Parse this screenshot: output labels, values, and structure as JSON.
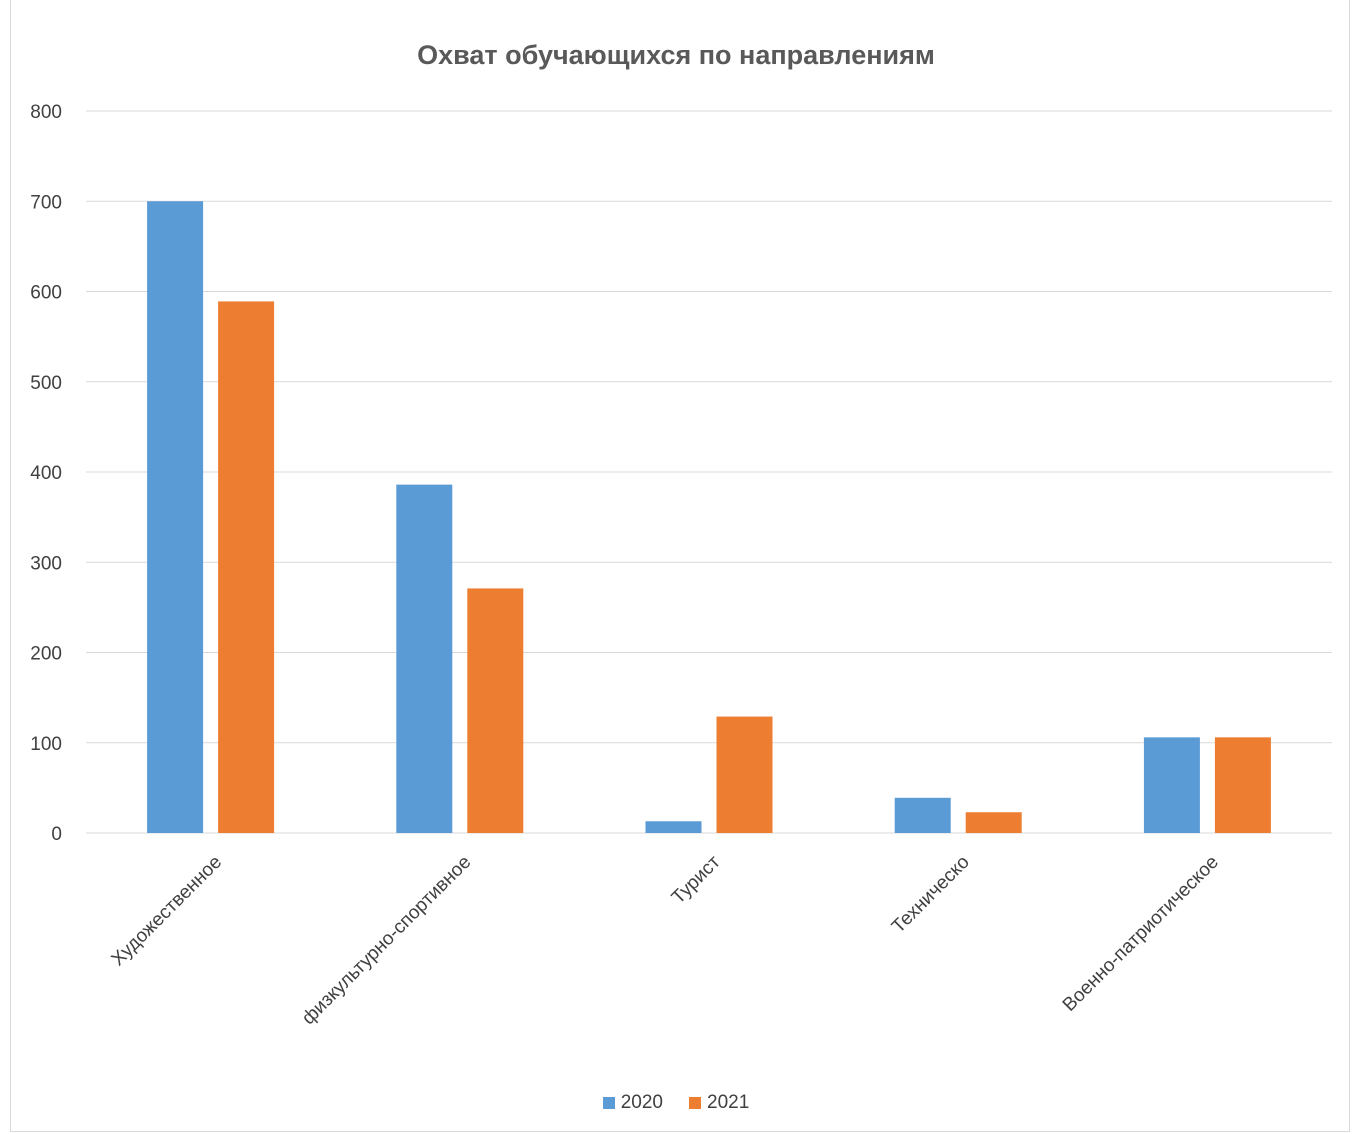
{
  "chart_data": {
    "type": "bar",
    "title": "Охват обучающихся по направлениям",
    "categories": [
      "Художественное",
      "физкультурно-спортивное",
      "Турист",
      "Техническо",
      "Военно-патриотическое"
    ],
    "series": [
      {
        "name": "2020",
        "values": [
          700,
          386,
          13,
          39,
          106
        ],
        "color": "#5b9bd5"
      },
      {
        "name": "2021",
        "values": [
          589,
          271,
          129,
          23,
          106
        ],
        "color": "#ed7d31"
      }
    ],
    "ylim": [
      0,
      800
    ],
    "yticks": [
      0,
      100,
      200,
      300,
      400,
      500,
      600,
      700,
      800
    ],
    "grid": true,
    "legend_position": "bottom"
  }
}
